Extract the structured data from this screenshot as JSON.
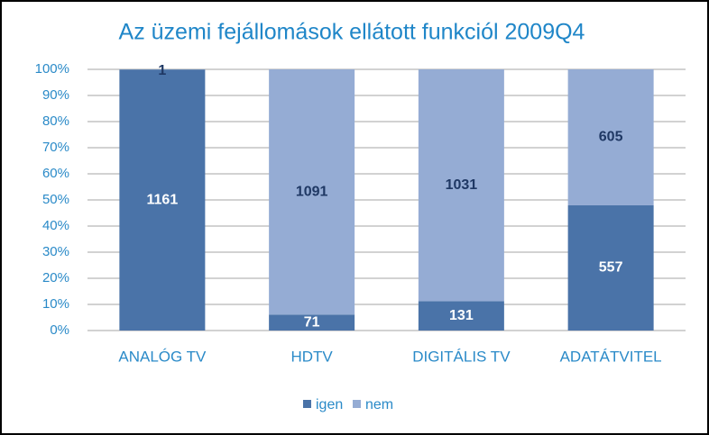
{
  "chart_data": {
    "type": "bar",
    "stacking": "percent",
    "title": "Az üzemi fejállomások  ellátott funkciól 2009Q4",
    "categories": [
      "ANALÓG TV",
      "HDTV",
      "DIGITÁLIS TV",
      "ADATÁTVITEL"
    ],
    "series": [
      {
        "name": "igen",
        "color": "#4a73a8",
        "values": [
          1161,
          71,
          131,
          557
        ]
      },
      {
        "name": "nem",
        "color": "#95acd4",
        "values": [
          1,
          1091,
          1031,
          605
        ]
      }
    ],
    "ylim": [
      0,
      100
    ],
    "yticks": [
      {
        "value": 0,
        "label": "0%"
      },
      {
        "value": 10,
        "label": "10%"
      },
      {
        "value": 20,
        "label": "20%"
      },
      {
        "value": 30,
        "label": "30%"
      },
      {
        "value": 40,
        "label": "40%"
      },
      {
        "value": 50,
        "label": "50%"
      },
      {
        "value": 60,
        "label": "60%"
      },
      {
        "value": 70,
        "label": "70%"
      },
      {
        "value": 80,
        "label": "80%"
      },
      {
        "value": 90,
        "label": "90%"
      },
      {
        "value": 100,
        "label": "100%"
      }
    ],
    "grid": true,
    "legend": "bottom"
  }
}
